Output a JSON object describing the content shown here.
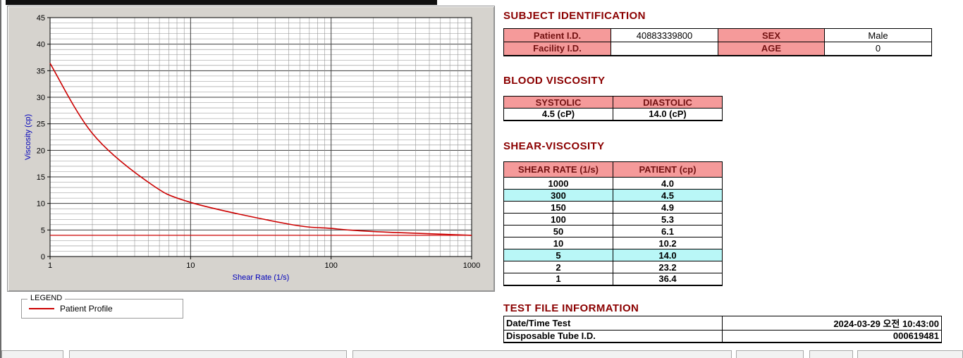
{
  "colors": {
    "heading": "#8b0000",
    "table_header_bg": "#f59a9a",
    "table_header_text": "#731212",
    "highlight_bg": "#b9f7f7",
    "series_line": "#cc0000",
    "axis_label": "#0000bb"
  },
  "chart_data": {
    "type": "line",
    "title": "",
    "xlabel": "Shear Rate (1/s)",
    "ylabel": "Viscosity (cp)",
    "x_scale": "log",
    "xlim": [
      1,
      1000
    ],
    "ylim": [
      0,
      45
    ],
    "x_ticks": [
      1,
      10,
      100,
      1000
    ],
    "y_ticks": [
      0,
      5,
      10,
      15,
      20,
      25,
      30,
      35,
      40,
      45
    ],
    "grid": true,
    "legend_position": "below-left",
    "series": [
      {
        "name": "Patient Profile",
        "color": "#cc0000",
        "x": [
          1,
          2,
          5,
          10,
          50,
          100,
          150,
          300,
          1000
        ],
        "y": [
          36.4,
          23.2,
          14.0,
          10.2,
          6.1,
          5.3,
          4.9,
          4.5,
          4.0
        ]
      }
    ],
    "reference_line": {
      "y": 4.0,
      "color": "#cc0000"
    }
  },
  "legend": {
    "title": "LEGEND",
    "series_label": "Patient Profile"
  },
  "subject_identification": {
    "heading": "SUBJECT IDENTIFICATION",
    "rows": [
      {
        "label_a": "Patient I.D.",
        "value_a": "40883339800",
        "label_b": "SEX",
        "value_b": "Male"
      },
      {
        "label_a": "Facility I.D.",
        "value_a": "",
        "label_b": "AGE",
        "value_b": "0"
      }
    ]
  },
  "blood_viscosity": {
    "heading": "BLOOD VISCOSITY",
    "col1_header": "SYSTOLIC",
    "col2_header": "DIASTOLIC",
    "col1_value": "4.5 (cP)",
    "col2_value": "14.0 (cP)"
  },
  "shear_viscosity": {
    "heading": "SHEAR-VISCOSITY",
    "col1_header": "SHEAR RATE (1/s)",
    "col2_header": "PATIENT (cp)",
    "rows": [
      {
        "rate": "1000",
        "value": "4.0",
        "highlight": false
      },
      {
        "rate": "300",
        "value": "4.5",
        "highlight": true
      },
      {
        "rate": "150",
        "value": "4.9",
        "highlight": false
      },
      {
        "rate": "100",
        "value": "5.3",
        "highlight": false
      },
      {
        "rate": "50",
        "value": "6.1",
        "highlight": false
      },
      {
        "rate": "10",
        "value": "10.2",
        "highlight": false
      },
      {
        "rate": "5",
        "value": "14.0",
        "highlight": true
      },
      {
        "rate": "2",
        "value": "23.2",
        "highlight": false
      },
      {
        "rate": "1",
        "value": "36.4",
        "highlight": false
      }
    ]
  },
  "test_file_information": {
    "heading": "TEST FILE INFORMATION",
    "rows": [
      {
        "label": "Date/Time Test",
        "value": "2024-03-29  오전 10:43:00"
      },
      {
        "label": "Disposable Tube I.D.",
        "value": "000619481"
      }
    ]
  }
}
